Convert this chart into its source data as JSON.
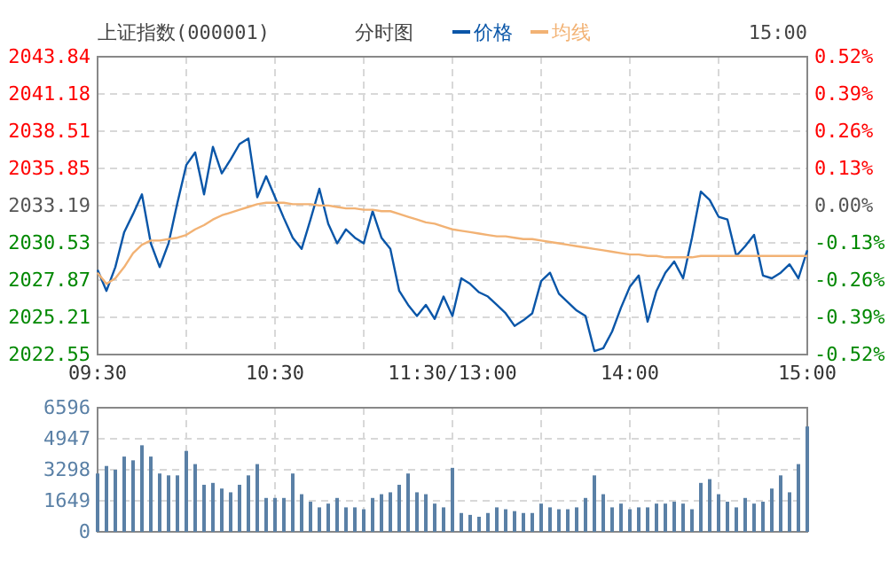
{
  "chart_data": [
    {
      "type": "line",
      "title": "上证指数(000001)",
      "subtitle": "分时图",
      "annotations": [
        "15:00"
      ],
      "legend": "top",
      "grid": true,
      "categories": [
        "09:30",
        null,
        null,
        null,
        null,
        null,
        null,
        null,
        null,
        null,
        null,
        null,
        null,
        null,
        null,
        null,
        null,
        null,
        null,
        null,
        "10:30",
        null,
        null,
        null,
        null,
        null,
        null,
        null,
        null,
        null,
        null,
        null,
        null,
        null,
        null,
        null,
        null,
        null,
        null,
        null,
        "11:30/13:00",
        null,
        null,
        null,
        null,
        null,
        null,
        null,
        null,
        null,
        null,
        null,
        null,
        null,
        null,
        null,
        null,
        null,
        null,
        null,
        "14:00",
        null,
        null,
        null,
        null,
        null,
        null,
        null,
        null,
        null,
        null,
        null,
        null,
        null,
        null,
        null,
        null,
        null,
        null,
        null,
        "15:00"
      ],
      "ylim": [
        2022.55,
        2043.84
      ],
      "yticks": [
        2022.55,
        2025.21,
        2027.87,
        2030.53,
        2033.19,
        2035.85,
        2038.51,
        2041.18,
        2043.84
      ],
      "y2lim": [
        -0.52,
        0.52
      ],
      "y2ticks": [
        {
          "value": -0.52,
          "label": "-0.52%"
        },
        {
          "value": -0.39,
          "label": "-0.39%"
        },
        {
          "value": -0.26,
          "label": "-0.26%"
        },
        {
          "value": -0.13,
          "label": "-0.13%"
        },
        {
          "value": 0,
          "label": "0.00%"
        },
        {
          "value": 0.13,
          "label": "0.13%"
        },
        {
          "value": 0.26,
          "label": "0.26%"
        },
        {
          "value": 0.39,
          "label": "0.39%"
        },
        {
          "value": 0.52,
          "label": "0.52%"
        }
      ],
      "series": [
        {
          "name": "价格",
          "color": "#0a56a8",
          "values": [
            2028.6,
            2027.1,
            2028.8,
            2031.3,
            2032.6,
            2034.0,
            2030.5,
            2028.8,
            2030.5,
            2033.4,
            2036.1,
            2037.0,
            2034.0,
            2037.4,
            2035.5,
            2036.5,
            2037.6,
            2038.0,
            2033.8,
            2035.3,
            2033.8,
            2032.3,
            2030.9,
            2030.1,
            2032.2,
            2034.4,
            2031.9,
            2030.5,
            2031.5,
            2030.9,
            2030.5,
            2032.8,
            2030.9,
            2030.1,
            2027.1,
            2026.1,
            2025.3,
            2026.1,
            2025.1,
            2026.7,
            2025.3,
            2028.0,
            2027.6,
            2027.0,
            2026.7,
            2026.1,
            2025.5,
            2024.6,
            2025.0,
            2025.5,
            2027.8,
            2028.4,
            2026.9,
            2026.3,
            2025.7,
            2025.3,
            2022.8,
            2023.0,
            2024.2,
            2025.9,
            2027.4,
            2028.2,
            2024.9,
            2027.1,
            2028.4,
            2029.2,
            2028.0,
            2030.9,
            2034.2,
            2033.6,
            2032.4,
            2032.2,
            2029.6,
            2030.3,
            2031.1,
            2028.2,
            2028.0,
            2028.4,
            2029.0,
            2028.0,
            2030.0
          ]
        },
        {
          "name": "均线",
          "color": "#f2b274",
          "values": [
            2028.4,
            2027.6,
            2028.0,
            2028.8,
            2029.8,
            2030.4,
            2030.7,
            2030.7,
            2030.8,
            2030.9,
            2031.1,
            2031.5,
            2031.8,
            2032.2,
            2032.5,
            2032.7,
            2032.9,
            2033.1,
            2033.3,
            2033.4,
            2033.4,
            2033.4,
            2033.3,
            2033.3,
            2033.3,
            2033.2,
            2033.2,
            2033.1,
            2033.0,
            2033.0,
            2032.9,
            2032.9,
            2032.8,
            2032.8,
            2032.6,
            2032.4,
            2032.2,
            2032.0,
            2031.9,
            2031.7,
            2031.5,
            2031.4,
            2031.3,
            2031.2,
            2031.1,
            2031.0,
            2031.0,
            2030.9,
            2030.8,
            2030.8,
            2030.7,
            2030.6,
            2030.5,
            2030.4,
            2030.3,
            2030.2,
            2030.1,
            2030.0,
            2029.9,
            2029.8,
            2029.7,
            2029.7,
            2029.6,
            2029.6,
            2029.5,
            2029.5,
            2029.5,
            2029.5,
            2029.6,
            2029.6,
            2029.6,
            2029.6,
            2029.6,
            2029.6,
            2029.6,
            2029.6,
            2029.6,
            2029.6,
            2029.6,
            2029.6,
            2029.6
          ]
        }
      ]
    },
    {
      "type": "bar",
      "color": "#5a80a6",
      "grid": true,
      "categories": [
        null,
        null,
        null,
        null,
        null,
        null,
        null,
        null,
        null,
        null,
        null,
        null,
        null,
        null,
        null,
        null,
        null,
        null,
        null,
        null,
        null,
        null,
        null,
        null,
        null,
        null,
        null,
        null,
        null,
        null,
        null,
        null,
        null,
        null,
        null,
        null,
        null,
        null,
        null,
        null,
        null,
        null,
        null,
        null,
        null,
        null,
        null,
        null,
        null,
        null,
        null,
        null,
        null,
        null,
        null,
        null,
        null,
        null,
        null,
        null,
        null,
        null,
        null,
        null,
        null,
        null,
        null,
        null,
        null,
        null,
        null,
        null,
        null,
        null,
        null,
        null,
        null,
        null,
        null,
        null,
        null
      ],
      "ylim": [
        0,
        6596
      ],
      "yticks": [
        0,
        1649,
        3298,
        4947,
        6596
      ],
      "values": [
        3100,
        3500,
        3300,
        4000,
        3800,
        4600,
        4000,
        3100,
        3000,
        3000,
        4300,
        3600,
        2500,
        2600,
        2300,
        2100,
        2500,
        3000,
        3600,
        1800,
        1800,
        1800,
        3100,
        2000,
        1600,
        1300,
        1500,
        1800,
        1300,
        1300,
        1200,
        1800,
        2000,
        2100,
        2500,
        3100,
        2100,
        2000,
        1500,
        1300,
        3400,
        1000,
        900,
        800,
        1000,
        1300,
        1200,
        1100,
        1000,
        1000,
        1500,
        1300,
        1200,
        1200,
        1300,
        1800,
        3000,
        2000,
        1300,
        1500,
        1200,
        1300,
        1300,
        1500,
        1500,
        1600,
        1500,
        1200,
        2600,
        2800,
        2000,
        1600,
        1300,
        1800,
        1500,
        1600,
        2300,
        3000,
        2100,
        3600,
        5600
      ]
    }
  ]
}
